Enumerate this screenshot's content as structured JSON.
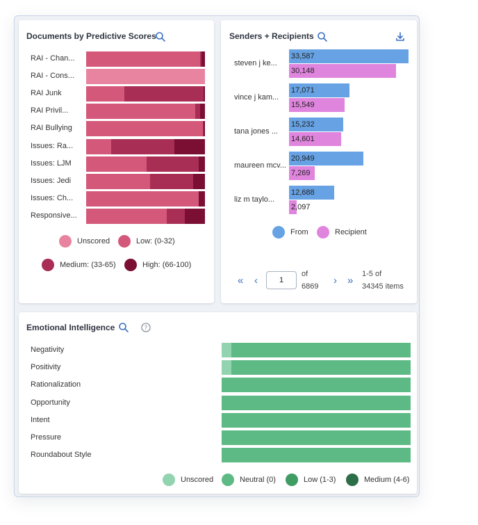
{
  "colors": {
    "unscored": "#e8849f",
    "low": "#d4587a",
    "medium": "#a82e55",
    "high": "#7a0f33",
    "from": "#66a2e4",
    "recipient": "#e085de",
    "emo_unscored": "#92d3b0",
    "emo_neutral": "#5dba84",
    "emo_low": "#3f9c63",
    "emo_medium": "#2b6e47"
  },
  "chart_data": [
    {
      "id": "docs",
      "type": "bar",
      "stacked": true,
      "orientation": "horizontal",
      "title": "Documents by Predictive Scores",
      "categories": [
        "RAI - Chan...",
        "RAI - Cons...",
        "RAI Junk",
        "RAI Privil...",
        "RAI Bullying",
        "Issues: Ra...",
        "Issues: LJM",
        "Issues: Jedi",
        "Issues: Ch...",
        "Responsive..."
      ],
      "series": [
        {
          "name": "Unscored",
          "values": [
            0,
            100,
            0,
            0,
            0,
            0,
            0,
            0,
            0,
            0
          ]
        },
        {
          "name": "Low: (0-32)",
          "values": [
            96,
            0,
            32,
            92,
            98,
            21,
            51,
            54,
            95,
            68
          ]
        },
        {
          "name": "Medium: (33-65)",
          "values": [
            1,
            0,
            67,
            4,
            1,
            53,
            44,
            36,
            0,
            15
          ]
        },
        {
          "name": "High: (66-100)",
          "values": [
            3,
            0,
            1,
            4,
            1,
            26,
            5,
            10,
            5,
            17
          ]
        }
      ],
      "legend": [
        "Unscored",
        "Low: (0-32)",
        "Medium: (33-65)",
        "High: (66-100)"
      ]
    },
    {
      "id": "senders",
      "type": "bar",
      "orientation": "horizontal",
      "title": "Senders + Recipients",
      "categories": [
        "steven j ke...",
        "vince j kam...",
        "tana jones ...",
        "maureen mcv...",
        "liz m taylo..."
      ],
      "series": [
        {
          "name": "From",
          "values": [
            33587,
            17071,
            15232,
            20949,
            12688
          ]
        },
        {
          "name": "Recipient",
          "values": [
            30148,
            15549,
            14601,
            7269,
            2097
          ]
        }
      ],
      "value_labels": {
        "from": [
          "33,587",
          "17,071",
          "15,232",
          "20,949",
          "12,688"
        ],
        "recipient": [
          "30,148",
          "15,549",
          "14,601",
          "7,269",
          "2,097"
        ]
      },
      "xlim": [
        0,
        33587
      ],
      "legend": [
        "From",
        "Recipient"
      ]
    },
    {
      "id": "emotional",
      "type": "bar",
      "stacked": true,
      "orientation": "horizontal",
      "title": "Emotional Intelligence",
      "categories": [
        "Negativity",
        "Positivity",
        "Rationalization",
        "Opportunity",
        "Intent",
        "Pressure",
        "Roundabout Style"
      ],
      "series": [
        {
          "name": "Unscored",
          "values": [
            5,
            5,
            0,
            0,
            0,
            0,
            0
          ]
        },
        {
          "name": "Neutral (0)",
          "values": [
            95,
            95,
            100,
            100,
            100,
            100,
            100
          ]
        },
        {
          "name": "Low (1-3)",
          "values": [
            0,
            0,
            0,
            0,
            0,
            0,
            0
          ]
        },
        {
          "name": "Medium (4-6)",
          "values": [
            0,
            0,
            0,
            0,
            0,
            0,
            0
          ]
        }
      ],
      "legend": [
        "Unscored",
        "Neutral (0)",
        "Low (1-3)",
        "Medium (4-6)"
      ]
    }
  ],
  "pager": {
    "page_value": "1",
    "of_label": "of",
    "total_pages": "6869",
    "range_label": "1-5 of",
    "items_label": "34345 items"
  }
}
